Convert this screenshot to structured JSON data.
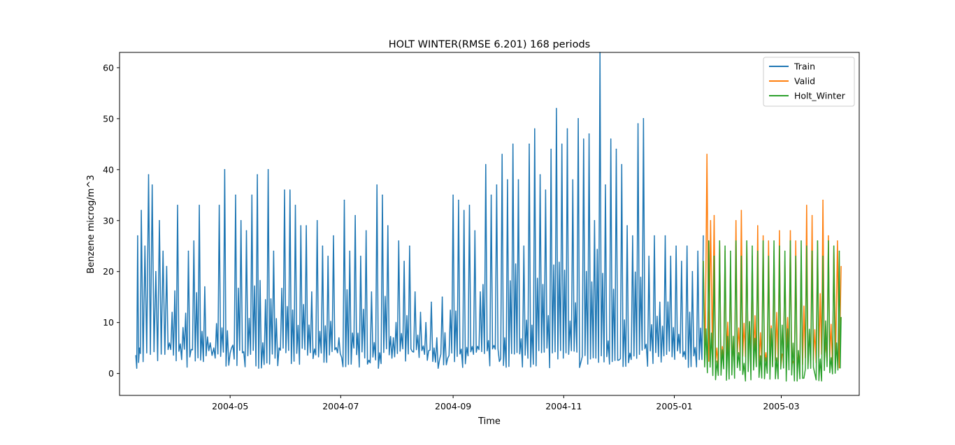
{
  "chart_data": {
    "type": "line",
    "title": "HOLT WINTER(RMSE 6.201) 168 periods",
    "xlabel": "Time",
    "ylabel": "Benzene microg/m^3",
    "xlim": [
      "2004-03-01",
      "2005-04-13"
    ],
    "ylim": [
      -4.3,
      63
    ],
    "grid": false,
    "legend_position": "top-right",
    "x_ticks": [
      "2004-05",
      "2004-07",
      "2004-09",
      "2004-11",
      "2005-01",
      "2005-03"
    ],
    "y_ticks": [
      0,
      10,
      20,
      30,
      40,
      50,
      60
    ],
    "series": [
      {
        "name": "Train",
        "color": "#1f77b4",
        "x": [
          "2004-03-10",
          "2004-03-11",
          "2004-03-12",
          "2004-03-13",
          "2004-03-15",
          "2004-03-17",
          "2004-03-19",
          "2004-03-21",
          "2004-03-23",
          "2004-03-25",
          "2004-03-27",
          "2004-03-30",
          "2004-04-02",
          "2004-04-05",
          "2004-04-08",
          "2004-04-11",
          "2004-04-14",
          "2004-04-17",
          "2004-04-20",
          "2004-04-22",
          "2004-04-25",
          "2004-04-28",
          "2004-05-01",
          "2004-05-04",
          "2004-05-07",
          "2004-05-10",
          "2004-05-13",
          "2004-05-16",
          "2004-05-19",
          "2004-05-22",
          "2004-05-25",
          "2004-05-28",
          "2004-05-31",
          "2004-06-03",
          "2004-06-06",
          "2004-06-09",
          "2004-06-12",
          "2004-06-15",
          "2004-06-18",
          "2004-06-21",
          "2004-06-24",
          "2004-06-27",
          "2004-06-30",
          "2004-07-03",
          "2004-07-06",
          "2004-07-09",
          "2004-07-12",
          "2004-07-15",
          "2004-07-18",
          "2004-07-21",
          "2004-07-24",
          "2004-07-27",
          "2004-07-30",
          "2004-08-02",
          "2004-08-05",
          "2004-08-08",
          "2004-08-11",
          "2004-08-14",
          "2004-08-17",
          "2004-08-20",
          "2004-08-23",
          "2004-08-26",
          "2004-08-29",
          "2004-09-01",
          "2004-09-04",
          "2004-09-07",
          "2004-09-10",
          "2004-09-13",
          "2004-09-16",
          "2004-09-19",
          "2004-09-22",
          "2004-09-25",
          "2004-09-28",
          "2004-10-01",
          "2004-10-04",
          "2004-10-07",
          "2004-10-10",
          "2004-10-13",
          "2004-10-16",
          "2004-10-19",
          "2004-10-22",
          "2004-10-25",
          "2004-10-28",
          "2004-10-31",
          "2004-11-03",
          "2004-11-06",
          "2004-11-09",
          "2004-11-12",
          "2004-11-15",
          "2004-11-18",
          "2004-11-21",
          "2004-11-24",
          "2004-11-27",
          "2004-11-30",
          "2004-12-03",
          "2004-12-06",
          "2004-12-09",
          "2004-12-12",
          "2004-12-15",
          "2004-12-18",
          "2004-12-21",
          "2004-12-24",
          "2004-12-27",
          "2004-12-30",
          "2005-01-02",
          "2005-01-05",
          "2005-01-08",
          "2005-01-11",
          "2005-01-14",
          "2005-01-17"
        ],
        "values": [
          3.5,
          27,
          5,
          32,
          25,
          39,
          37,
          20,
          30,
          24,
          21,
          12,
          33,
          9,
          24,
          26,
          33,
          17,
          6,
          5,
          33,
          40,
          4,
          35,
          30,
          28,
          35,
          39,
          6,
          40,
          24,
          5,
          36,
          36,
          33,
          29,
          29,
          16,
          30,
          25,
          23,
          27,
          7,
          34,
          24,
          31,
          23,
          28,
          16,
          37,
          35,
          29,
          7,
          26,
          22,
          25,
          16,
          12,
          10,
          14,
          7,
          15,
          3,
          35,
          34,
          32,
          33,
          28,
          16,
          41,
          35,
          37,
          43,
          38,
          45,
          38,
          25,
          45,
          48,
          39,
          36,
          44,
          52,
          45,
          48,
          38,
          50,
          46,
          47,
          30,
          63,
          37,
          46,
          44,
          41,
          29,
          27,
          49,
          50,
          23,
          27,
          14,
          27,
          23,
          25,
          22,
          25,
          20,
          24,
          27
        ]
      },
      {
        "name": "Valid",
        "color": "#ff7f0e",
        "x": [
          "2005-01-17",
          "2005-01-19",
          "2005-01-21",
          "2005-01-23",
          "2005-01-26",
          "2005-01-29",
          "2005-02-01",
          "2005-02-04",
          "2005-02-07",
          "2005-02-10",
          "2005-02-13",
          "2005-02-16",
          "2005-02-19",
          "2005-02-22",
          "2005-02-25",
          "2005-02-28",
          "2005-03-03",
          "2005-03-06",
          "2005-03-09",
          "2005-03-12",
          "2005-03-15",
          "2005-03-18",
          "2005-03-21",
          "2005-03-24",
          "2005-03-27",
          "2005-03-30",
          "2005-04-01",
          "2005-04-03"
        ],
        "values": [
          22,
          43,
          30,
          31,
          26,
          24,
          21,
          30,
          32,
          26,
          23,
          29,
          27,
          26,
          24,
          28,
          22,
          28,
          26,
          23,
          33,
          31,
          26,
          34,
          27,
          25,
          26,
          21
        ]
      },
      {
        "name": "Holt_Winter",
        "color": "#2ca02c",
        "x": [
          "2005-01-17",
          "2005-01-20",
          "2005-01-23",
          "2005-01-26",
          "2005-01-29",
          "2005-02-01",
          "2005-02-04",
          "2005-02-07",
          "2005-02-10",
          "2005-02-13",
          "2005-02-16",
          "2005-02-19",
          "2005-02-22",
          "2005-02-25",
          "2005-02-28",
          "2005-03-03",
          "2005-03-06",
          "2005-03-09",
          "2005-03-12",
          "2005-03-15",
          "2005-03-18",
          "2005-03-21",
          "2005-03-24",
          "2005-03-27",
          "2005-03-30",
          "2005-04-02",
          "2005-04-03"
        ],
        "values": [
          22,
          26,
          23,
          26,
          25,
          24,
          26,
          23,
          26,
          25,
          24,
          26,
          23,
          26,
          25,
          24,
          26,
          23,
          26,
          25,
          24,
          26,
          23,
          26,
          25,
          24,
          11
        ]
      }
    ]
  }
}
